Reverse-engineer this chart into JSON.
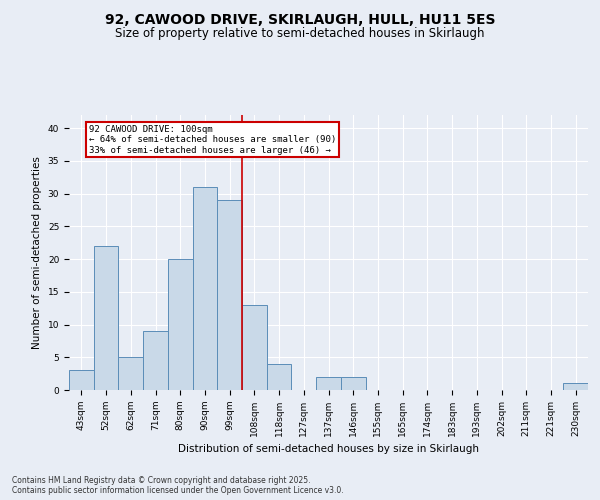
{
  "title_line1": "92, CAWOOD DRIVE, SKIRLAUGH, HULL, HU11 5ES",
  "title_line2": "Size of property relative to semi-detached houses in Skirlaugh",
  "xlabel": "Distribution of semi-detached houses by size in Skirlaugh",
  "ylabel": "Number of semi-detached properties",
  "categories": [
    "43sqm",
    "52sqm",
    "62sqm",
    "71sqm",
    "80sqm",
    "90sqm",
    "99sqm",
    "108sqm",
    "118sqm",
    "127sqm",
    "137sqm",
    "146sqm",
    "155sqm",
    "165sqm",
    "174sqm",
    "183sqm",
    "193sqm",
    "202sqm",
    "211sqm",
    "221sqm",
    "230sqm"
  ],
  "values": [
    3,
    22,
    5,
    9,
    20,
    31,
    29,
    13,
    4,
    0,
    2,
    2,
    0,
    0,
    0,
    0,
    0,
    0,
    0,
    0,
    1
  ],
  "bar_color": "#c9d9e8",
  "bar_edge_color": "#5b8db8",
  "ref_line_label": "92 CAWOOD DRIVE: 100sqm",
  "annotation_line1": "← 64% of semi-detached houses are smaller (90)",
  "annotation_line2": "33% of semi-detached houses are larger (46) →",
  "ylim": [
    0,
    42
  ],
  "yticks": [
    0,
    5,
    10,
    15,
    20,
    25,
    30,
    35,
    40
  ],
  "background_color": "#e8edf5",
  "plot_background": "#e8edf5",
  "grid_color": "#ffffff",
  "footer_line1": "Contains HM Land Registry data © Crown copyright and database right 2025.",
  "footer_line2": "Contains public sector information licensed under the Open Government Licence v3.0.",
  "annotation_box_color": "#ffffff",
  "annotation_box_edge": "#cc0000",
  "ref_line_color": "#cc0000",
  "title_fontsize": 10,
  "subtitle_fontsize": 8.5,
  "axis_fontsize": 7.5,
  "tick_fontsize": 6.5
}
